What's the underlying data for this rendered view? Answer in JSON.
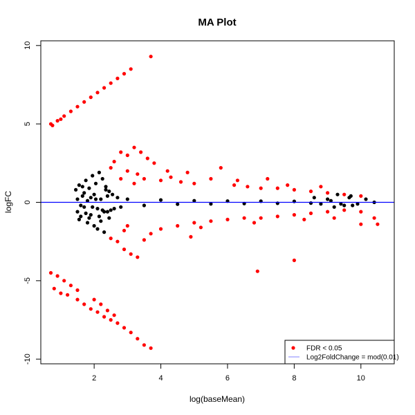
{
  "chart_data": {
    "type": "scatter",
    "title": "MA Plot",
    "xlabel": "log(baseMean)",
    "ylabel": "logFC",
    "xlim": [
      0.4,
      11.0
    ],
    "ylim": [
      -10.3,
      10.3
    ],
    "x_ticks": [
      2,
      4,
      6,
      8,
      10
    ],
    "y_ticks": [
      -10,
      -5,
      0,
      5,
      10
    ],
    "x_tick_labels": [
      "2",
      "4",
      "6",
      "8",
      "10"
    ],
    "y_tick_labels": [
      "-10",
      "-5",
      "0",
      "5",
      "10"
    ],
    "grid": false,
    "reference_line": {
      "y": 0,
      "color": "#0000ff"
    },
    "legend": {
      "position": "bottom-right",
      "entries": [
        {
          "label": "FDR < 0.05",
          "marker": "point",
          "color": "#ff0000"
        },
        {
          "label": "Log2FoldChange = mod(0.01)",
          "marker": "line",
          "color": "#8080ff"
        }
      ]
    },
    "series": [
      {
        "color": "#000000",
        "points": [
          [
            1.45,
            0.8
          ],
          [
            1.5,
            -0.6
          ],
          [
            1.55,
            1.1
          ],
          [
            1.6,
            -0.9
          ],
          [
            1.65,
            0.4
          ],
          [
            1.7,
            -0.3
          ],
          [
            1.75,
            1.4
          ],
          [
            1.8,
            -1.3
          ],
          [
            1.85,
            0.9
          ],
          [
            1.9,
            -0.8
          ],
          [
            1.95,
            1.7
          ],
          [
            2.0,
            -1.5
          ],
          [
            2.05,
            1.2
          ],
          [
            2.1,
            -1.7
          ],
          [
            2.15,
            1.9
          ],
          [
            2.2,
            -1.2
          ],
          [
            2.25,
            1.5
          ],
          [
            2.3,
            -1.9
          ],
          [
            2.35,
            1.0
          ],
          [
            2.4,
            -0.6
          ],
          [
            2.45,
            0.7
          ],
          [
            2.5,
            -0.5
          ],
          [
            2.55,
            0.5
          ],
          [
            2.6,
            -0.4
          ],
          [
            2.7,
            0.3
          ],
          [
            2.8,
            -0.3
          ],
          [
            1.5,
            0.2
          ],
          [
            1.6,
            -0.2
          ],
          [
            1.7,
            0.6
          ],
          [
            1.8,
            0.1
          ],
          [
            1.9,
            0.3
          ],
          [
            2.0,
            0.5
          ],
          [
            2.1,
            -0.4
          ],
          [
            2.2,
            0.2
          ],
          [
            2.3,
            -0.6
          ],
          [
            2.4,
            0.4
          ],
          [
            1.55,
            -1.1
          ],
          [
            1.65,
            1.0
          ],
          [
            1.75,
            -0.7
          ],
          [
            1.85,
            -1.0
          ],
          [
            1.95,
            -0.3
          ],
          [
            2.05,
            0.2
          ],
          [
            2.15,
            -0.9
          ],
          [
            2.25,
            -0.5
          ],
          [
            2.35,
            0.8
          ],
          [
            2.45,
            -1.0
          ],
          [
            3.0,
            0.2
          ],
          [
            3.5,
            -0.2
          ],
          [
            4.0,
            0.15
          ],
          [
            4.5,
            -0.12
          ],
          [
            5.0,
            0.1
          ],
          [
            5.5,
            -0.1
          ],
          [
            6.0,
            0.08
          ],
          [
            6.5,
            -0.08
          ],
          [
            7.0,
            0.07
          ],
          [
            7.5,
            -0.06
          ],
          [
            8.0,
            0.06
          ],
          [
            8.5,
            -0.05
          ],
          [
            8.6,
            0.3
          ],
          [
            8.8,
            -0.1
          ],
          [
            9.0,
            0.2
          ],
          [
            9.2,
            -0.3
          ],
          [
            9.3,
            0.5
          ],
          [
            9.5,
            -0.2
          ],
          [
            9.7,
            0.4
          ],
          [
            9.9,
            -0.1
          ],
          [
            9.75,
            -0.2
          ],
          [
            9.65,
            0.3
          ],
          [
            10.15,
            0.2
          ],
          [
            10.4,
            0.0
          ],
          [
            9.1,
            0.1
          ],
          [
            9.4,
            -0.1
          ]
        ]
      },
      {
        "color": "#ff0000",
        "points": [
          [
            0.7,
            5.0
          ],
          [
            0.9,
            5.2
          ],
          [
            1.1,
            5.5
          ],
          [
            1.3,
            5.8
          ],
          [
            1.5,
            6.1
          ],
          [
            1.7,
            6.4
          ],
          [
            1.9,
            6.7
          ],
          [
            2.1,
            7.0
          ],
          [
            2.3,
            7.3
          ],
          [
            2.5,
            7.6
          ],
          [
            2.7,
            7.9
          ],
          [
            2.9,
            8.2
          ],
          [
            3.1,
            8.5
          ],
          [
            3.7,
            9.3
          ],
          [
            0.75,
            4.9
          ],
          [
            1.0,
            5.3
          ],
          [
            0.7,
            -4.5
          ],
          [
            0.9,
            -4.7
          ],
          [
            1.1,
            -5.0
          ],
          [
            1.3,
            -5.3
          ],
          [
            1.5,
            -5.6
          ],
          [
            0.8,
            -5.5
          ],
          [
            1.0,
            -5.8
          ],
          [
            1.2,
            -5.9
          ],
          [
            1.5,
            -6.2
          ],
          [
            1.7,
            -6.5
          ],
          [
            1.9,
            -6.8
          ],
          [
            2.1,
            -7.0
          ],
          [
            2.3,
            -7.3
          ],
          [
            2.5,
            -7.5
          ],
          [
            2.7,
            -7.7
          ],
          [
            2.9,
            -8.0
          ],
          [
            3.1,
            -8.3
          ],
          [
            3.3,
            -8.7
          ],
          [
            3.5,
            -9.1
          ],
          [
            3.7,
            -9.3
          ],
          [
            2.0,
            -6.2
          ],
          [
            2.2,
            -6.5
          ],
          [
            2.4,
            -6.9
          ],
          [
            2.6,
            -7.2
          ],
          [
            2.5,
            2.2
          ],
          [
            2.6,
            2.6
          ],
          [
            2.8,
            3.2
          ],
          [
            3.0,
            3.0
          ],
          [
            3.2,
            3.5
          ],
          [
            3.4,
            3.2
          ],
          [
            3.6,
            2.8
          ],
          [
            3.8,
            2.5
          ],
          [
            3.0,
            2.0
          ],
          [
            3.3,
            1.8
          ],
          [
            3.5,
            1.5
          ],
          [
            4.0,
            1.4
          ],
          [
            4.3,
            1.6
          ],
          [
            4.6,
            1.3
          ],
          [
            5.0,
            1.2
          ],
          [
            5.5,
            1.5
          ],
          [
            5.8,
            2.2
          ],
          [
            6.2,
            1.1
          ],
          [
            6.6,
            1.0
          ],
          [
            7.0,
            0.9
          ],
          [
            7.5,
            0.9
          ],
          [
            8.0,
            0.8
          ],
          [
            8.5,
            0.7
          ],
          [
            9.0,
            0.6
          ],
          [
            9.5,
            0.5
          ],
          [
            10.0,
            0.4
          ],
          [
            2.5,
            -2.3
          ],
          [
            2.7,
            -2.5
          ],
          [
            2.9,
            -3.0
          ],
          [
            3.1,
            -3.3
          ],
          [
            3.3,
            -3.5
          ],
          [
            3.5,
            -2.4
          ],
          [
            3.7,
            -2.0
          ],
          [
            4.0,
            -1.7
          ],
          [
            4.5,
            -1.5
          ],
          [
            5.0,
            -1.3
          ],
          [
            5.5,
            -1.2
          ],
          [
            6.0,
            -1.1
          ],
          [
            6.5,
            -1.0
          ],
          [
            7.0,
            -1.0
          ],
          [
            7.5,
            -0.9
          ],
          [
            8.0,
            -0.8
          ],
          [
            8.5,
            -0.7
          ],
          [
            9.0,
            -0.6
          ],
          [
            9.5,
            -0.5
          ],
          [
            10.0,
            -0.6
          ],
          [
            6.9,
            -4.4
          ],
          [
            8.0,
            -3.7
          ],
          [
            10.0,
            -1.4
          ],
          [
            10.5,
            -1.4
          ],
          [
            10.4,
            -1.0
          ],
          [
            9.2,
            -1.0
          ],
          [
            8.8,
            1.0
          ],
          [
            7.2,
            1.5
          ],
          [
            4.2,
            2.0
          ],
          [
            4.8,
            1.9
          ],
          [
            3.2,
            1.2
          ],
          [
            3.0,
            -1.5
          ],
          [
            2.8,
            1.5
          ],
          [
            2.9,
            -1.8
          ],
          [
            4.9,
            -2.2
          ],
          [
            5.2,
            -1.6
          ],
          [
            6.3,
            1.4
          ],
          [
            6.8,
            -1.3
          ],
          [
            7.8,
            1.1
          ],
          [
            8.3,
            -1.1
          ]
        ]
      }
    ]
  }
}
